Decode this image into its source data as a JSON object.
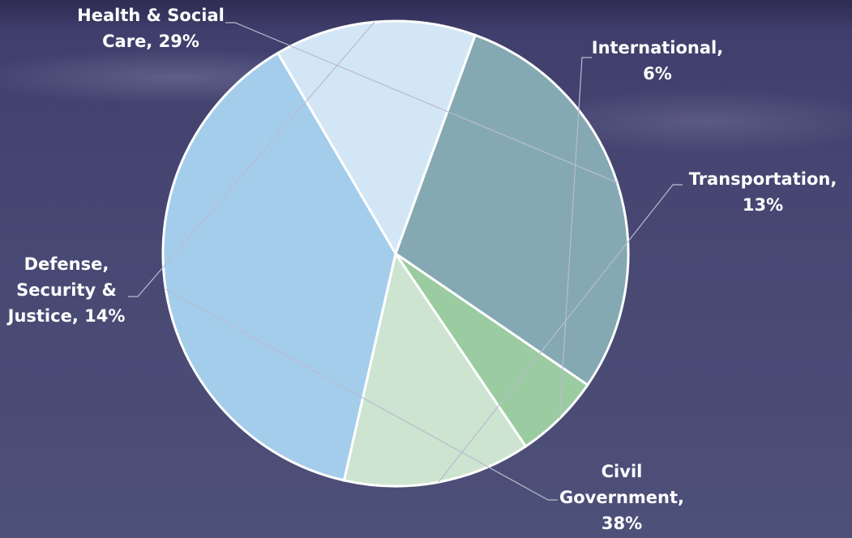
{
  "chart_data": {
    "type": "pie",
    "title": "",
    "slices": [
      {
        "name": "Health & Social Care",
        "value": 29,
        "label": [
          "Health & Social",
          "Care, 29%"
        ],
        "color": "#84a9b2"
      },
      {
        "name": "International",
        "value": 6,
        "label": [
          "International,",
          "6%"
        ],
        "color": "#9bcba0"
      },
      {
        "name": "Transportation",
        "value": 13,
        "label": [
          "Transportation,",
          "13%"
        ],
        "color": "#cde4d0"
      },
      {
        "name": "Civil Government",
        "value": 38,
        "label": [
          "Civil",
          "Government,",
          "38%"
        ],
        "color": "#a4cdec"
      },
      {
        "name": "Defense, Security & Justice",
        "value": 14,
        "label": [
          "Defense,",
          "Security &",
          "Justice, 14%"
        ],
        "color": "#d3e6f5"
      }
    ],
    "start_angle_deg": -70,
    "legend": "none",
    "data_labels": "outside-with-leader-lines"
  }
}
